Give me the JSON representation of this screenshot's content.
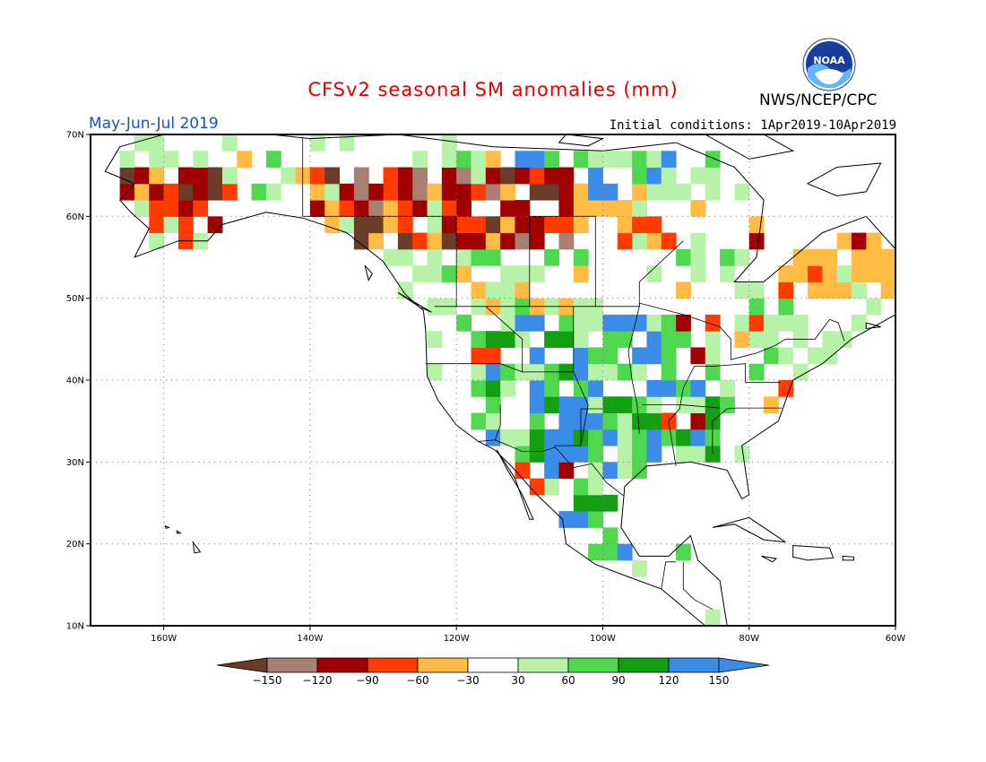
{
  "title": "CFSv2 seasonal SM anomalies (mm)",
  "valid_period": "May-Jun-Jul 2019",
  "initial_conditions": "Initial conditions: 1Apr2019-10Apr2019",
  "organization": "NWS/NCEP/CPC",
  "logo_text": "NOAA",
  "map": {
    "lon_range": [
      -170,
      -60
    ],
    "lat_range": [
      10,
      70
    ],
    "lat_labels": [
      "10N",
      "20N",
      "30N",
      "40N",
      "50N",
      "60N",
      "70N"
    ],
    "lon_labels": [
      "160W",
      "140W",
      "120W",
      "100W",
      "80W",
      "60W"
    ]
  },
  "colorbar": {
    "labels": [
      "-150",
      "-120",
      "-90",
      "-60",
      "-30",
      "30",
      "60",
      "90",
      "120",
      "150"
    ],
    "colors": [
      "#6b3c2a",
      "#a87f72",
      "#a00000",
      "#ff3b00",
      "#ffbb44",
      "#ffffff",
      "#b6f3a8",
      "#4fd84f",
      "#12a012",
      "#3b8ce8",
      "#3b8ce8"
    ]
  },
  "colors": {
    "dark_brown": "#6b3c2a",
    "light_brown": "#a87f72",
    "dark_red": "#a00000",
    "red": "#ff3b00",
    "orange": "#ffbb44",
    "light_green": "#b6f3a8",
    "green": "#4fd84f",
    "dark_green": "#12a012",
    "blue": "#3b8ce8"
  }
}
